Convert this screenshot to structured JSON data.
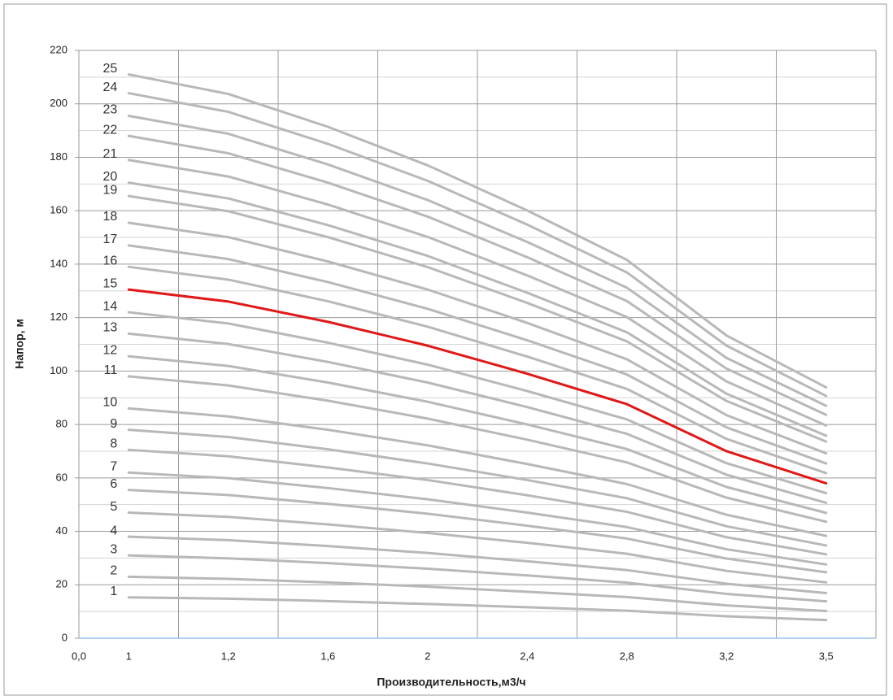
{
  "chart_data": {
    "type": "line",
    "x_label": "Производительность,м3/ч",
    "y_label": "Напор, м",
    "x_origin_label": "0,0",
    "categories": [
      "1",
      "1,2",
      "1,6",
      "2",
      "2,4",
      "2,8",
      "3,2",
      "3,5"
    ],
    "ylim": [
      0,
      220
    ],
    "yticks": [
      0,
      20,
      40,
      60,
      80,
      100,
      120,
      140,
      160,
      180,
      200,
      220
    ],
    "y_minor_ticks": [
      10,
      30,
      50,
      70,
      90,
      110,
      130,
      150,
      170,
      190,
      210
    ],
    "grid": true,
    "series": [
      {
        "name": "1",
        "color": "#b8b8b8",
        "values": [
          15.3,
          14.8,
          13.9,
          12.8,
          11.6,
          10.3,
          8.2,
          6.8
        ]
      },
      {
        "name": "2",
        "color": "#b8b8b8",
        "values": [
          23,
          22.2,
          20.9,
          19.3,
          17.4,
          15.4,
          12.3,
          10.2
        ]
      },
      {
        "name": "3",
        "color": "#b8b8b8",
        "values": [
          31,
          29.9,
          28.1,
          26.0,
          23.5,
          20.8,
          16.6,
          13.8
        ]
      },
      {
        "name": "4",
        "color": "#b8b8b8",
        "values": [
          38,
          36.7,
          34.5,
          31.9,
          28.8,
          25.5,
          20.4,
          16.9
        ]
      },
      {
        "name": "5",
        "color": "#b8b8b8",
        "values": [
          47,
          45.4,
          42.6,
          39.4,
          35.7,
          31.6,
          25.2,
          20.9
        ]
      },
      {
        "name": "6",
        "color": "#b8b8b8",
        "values": [
          55.5,
          53.6,
          50.3,
          46.6,
          42.1,
          37.3,
          29.8,
          24.7
        ]
      },
      {
        "name": "7",
        "color": "#b8b8b8",
        "values": [
          62,
          59.9,
          56.2,
          52.0,
          47.0,
          41.6,
          33.3,
          27.6
        ]
      },
      {
        "name": "8",
        "color": "#b8b8b8",
        "values": [
          70.5,
          68.1,
          63.9,
          59.2,
          53.5,
          47.3,
          37.8,
          31.4
        ]
      },
      {
        "name": "9",
        "color": "#b8b8b8",
        "values": [
          78,
          75.3,
          70.7,
          65.4,
          59.2,
          52.4,
          41.9,
          34.7
        ]
      },
      {
        "name": "10",
        "color": "#b8b8b8",
        "values": [
          86,
          83.0,
          78.0,
          72.2,
          65.2,
          57.7,
          46.2,
          38.3
        ]
      },
      {
        "name": "11",
        "color": "#b8b8b8",
        "values": [
          98,
          94.6,
          88.9,
          82.2,
          74.3,
          65.8,
          52.6,
          43.6
        ]
      },
      {
        "name": "12",
        "color": "#b8b8b8",
        "values": [
          105.5,
          101.9,
          95.7,
          88.5,
          80.0,
          70.8,
          56.6,
          46.9
        ]
      },
      {
        "name": "13",
        "color": "#b8b8b8",
        "values": [
          114,
          110.1,
          103.4,
          95.7,
          86.5,
          76.5,
          61.2,
          50.7
        ]
      },
      {
        "name": "14",
        "color": "#b8b8b8",
        "values": [
          122,
          117.8,
          110.6,
          102.4,
          92.5,
          81.9,
          65.5,
          54.3
        ]
      },
      {
        "name": "15",
        "color": "#e01818",
        "values": [
          130.5,
          126,
          118.4,
          109.5,
          99,
          87.6,
          70,
          58
        ]
      },
      {
        "name": "16",
        "color": "#b8b8b8",
        "values": [
          139,
          134.2,
          126.1,
          116.6,
          105.4,
          93.3,
          74.6,
          61.8
        ]
      },
      {
        "name": "17",
        "color": "#b8b8b8",
        "values": [
          147,
          141.9,
          133.3,
          123.3,
          111.5,
          98.7,
          78.9,
          65.4
        ]
      },
      {
        "name": "18",
        "color": "#b8b8b8",
        "values": [
          155.5,
          150.1,
          141.0,
          130.5,
          118.0,
          104.4,
          83.5,
          69.2
        ]
      },
      {
        "name": "19",
        "color": "#b8b8b8",
        "values": [
          165.5,
          159.8,
          150.1,
          138.9,
          125.5,
          111.1,
          88.8,
          73.6
        ]
      },
      {
        "name": "20",
        "color": "#b8b8b8",
        "values": [
          170.5,
          164.6,
          154.6,
          143.1,
          129.3,
          114.5,
          91.5,
          75.8
        ]
      },
      {
        "name": "21",
        "color": "#b8b8b8",
        "values": [
          179,
          172.8,
          162.3,
          150.2,
          135.8,
          120.2,
          96.1,
          79.6
        ]
      },
      {
        "name": "22",
        "color": "#b8b8b8",
        "values": [
          188,
          181.5,
          170.5,
          157.8,
          142.6,
          126.2,
          100.9,
          83.6
        ]
      },
      {
        "name": "23",
        "color": "#b8b8b8",
        "values": [
          195.5,
          188.8,
          177.3,
          164.0,
          148.3,
          131.2,
          104.9,
          87.0
        ]
      },
      {
        "name": "24",
        "color": "#b8b8b8",
        "values": [
          204,
          197.0,
          185.0,
          171.2,
          154.8,
          136.9,
          109.5,
          90.7
        ]
      },
      {
        "name": "25",
        "color": "#b8b8b8",
        "values": [
          211,
          203.7,
          191.4,
          177.0,
          160.1,
          141.6,
          113.3,
          93.9
        ]
      }
    ]
  }
}
